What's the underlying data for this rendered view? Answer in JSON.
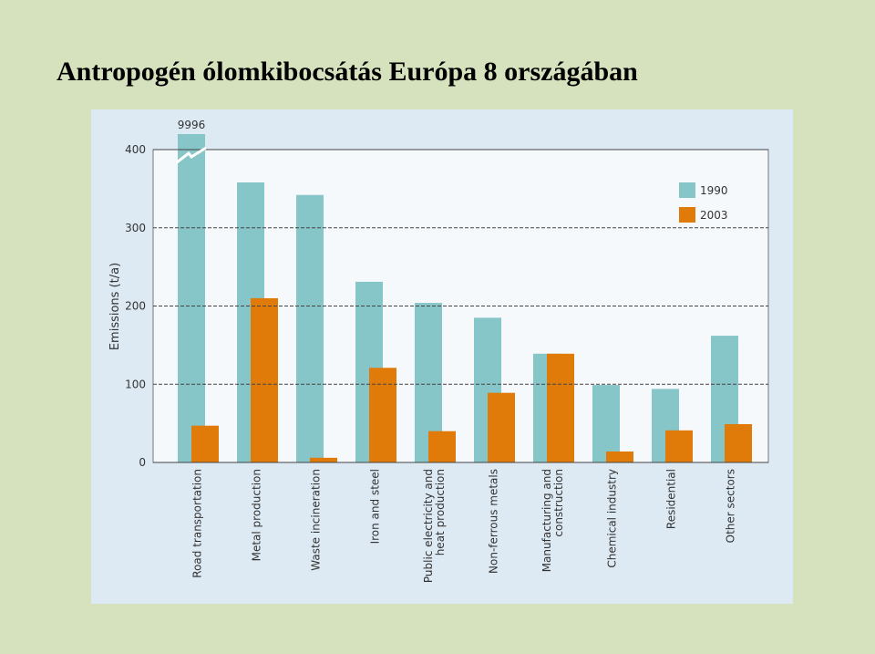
{
  "title": "Antropogén ólomkibocsátás Európa 8 országában",
  "chart_data": {
    "type": "bar",
    "ylabel": "Emissions (t/a)",
    "categories": [
      "Road transportation",
      "Metal production",
      "Waste incineration",
      "Iron and steel",
      "Public electricity and heat production",
      "Non-ferrous metals",
      "Manufacturing and construction",
      "Chemical industry",
      "Residential",
      "Other sectors"
    ],
    "series": [
      {
        "name": "1990",
        "color": "#86c5c8",
        "values": [
          9996,
          358,
          342,
          231,
          204,
          185,
          139,
          99,
          94,
          162
        ],
        "value_labels": [
          "9996",
          null,
          null,
          null,
          null,
          null,
          null,
          null,
          null,
          null
        ]
      },
      {
        "name": "2003",
        "color": "#e07b09",
        "values": [
          47,
          210,
          6,
          121,
          40,
          89,
          139,
          14,
          41,
          49
        ]
      }
    ],
    "ylim": [
      0,
      400
    ],
    "yticks": [
      0,
      100,
      200,
      300,
      400
    ],
    "grid": true,
    "legend": "upper right"
  }
}
